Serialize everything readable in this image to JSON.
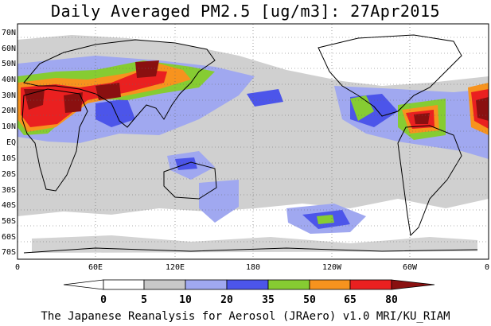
{
  "title": "Daily Averaged PM2.5 [ug/m3]: 27Apr2015",
  "footer": "The Japanese Reanalysis for Aerosol (JRAero) v1.0 MRI/KU_RIAM",
  "lat_labels": [
    "70N",
    "60N",
    "50N",
    "40N",
    "30N",
    "20N",
    "10N",
    "EQ",
    "10S",
    "20S",
    "30S",
    "40S",
    "50S",
    "60S",
    "70S"
  ],
  "lon_labels": [
    "0",
    "60E",
    "120E",
    "180",
    "120W",
    "60W",
    "0"
  ],
  "colorbar": {
    "levels": [
      "0",
      "5",
      "10",
      "20",
      "35",
      "50",
      "65",
      "80"
    ],
    "colors": [
      "#ffffff",
      "#c8c8c8",
      "#a0a8f0",
      "#4c55ea",
      "#86cc32",
      "#f7931e",
      "#ea2020",
      "#8a1010"
    ]
  },
  "map_colors": {
    "land_outline": "#000000",
    "grid": "#666666"
  }
}
